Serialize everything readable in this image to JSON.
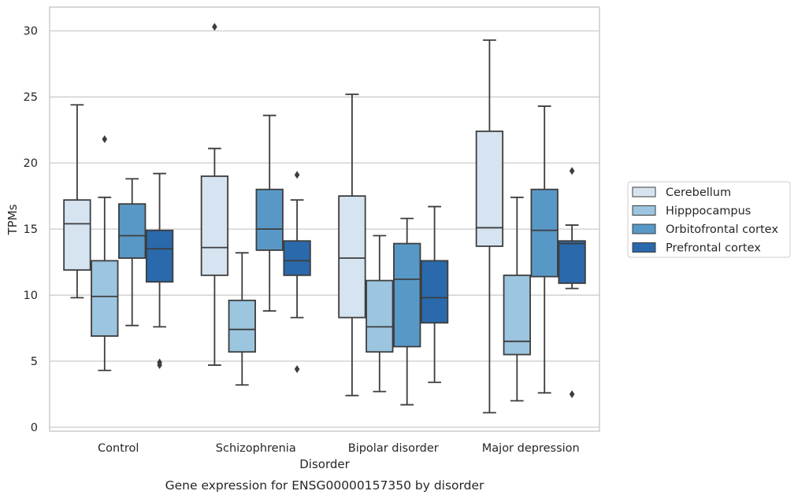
{
  "chart_data": {
    "type": "boxplot",
    "title": "Gene expression for ENSG00000157350 by disorder",
    "xlabel": "Disorder",
    "ylabel": "TPMs",
    "ylim": [
      -0.3,
      31.8
    ],
    "yticks": [
      0,
      5,
      10,
      15,
      20,
      25,
      30
    ],
    "grid": true,
    "legend_position": "right",
    "categories": [
      "Control",
      "Schizophrenia",
      "Bipolar disorder",
      "Major depression"
    ],
    "series": [
      {
        "name": "Cerebellum",
        "color": "#d6e3f1",
        "boxes": [
          {
            "whislo": 9.8,
            "q1": 11.9,
            "med": 15.4,
            "q3": 17.2,
            "whishi": 24.4,
            "fliers": []
          },
          {
            "whislo": 4.7,
            "q1": 11.5,
            "med": 13.6,
            "q3": 19.0,
            "whishi": 21.1,
            "fliers": [
              30.3
            ]
          },
          {
            "whislo": 2.4,
            "q1": 8.3,
            "med": 12.8,
            "q3": 17.5,
            "whishi": 25.2,
            "fliers": []
          },
          {
            "whislo": 1.1,
            "q1": 13.7,
            "med": 15.1,
            "q3": 22.4,
            "whishi": 29.3,
            "fliers": []
          }
        ]
      },
      {
        "name": "Hipppocampus",
        "color": "#9cc5df",
        "boxes": [
          {
            "whislo": 4.3,
            "q1": 6.9,
            "med": 9.9,
            "q3": 12.6,
            "whishi": 17.4,
            "fliers": [
              21.8
            ]
          },
          {
            "whislo": 3.2,
            "q1": 5.7,
            "med": 7.4,
            "q3": 9.6,
            "whishi": 13.2,
            "fliers": []
          },
          {
            "whislo": 2.7,
            "q1": 5.7,
            "med": 7.6,
            "q3": 11.1,
            "whishi": 14.5,
            "fliers": []
          },
          {
            "whislo": 2.0,
            "q1": 5.5,
            "med": 6.5,
            "q3": 11.5,
            "whishi": 17.4,
            "fliers": []
          }
        ]
      },
      {
        "name": "Orbitofrontal cortex",
        "color": "#5898c6",
        "boxes": [
          {
            "whislo": 7.7,
            "q1": 12.8,
            "med": 14.5,
            "q3": 16.9,
            "whishi": 18.8,
            "fliers": []
          },
          {
            "whislo": 8.8,
            "q1": 13.4,
            "med": 15.0,
            "q3": 18.0,
            "whishi": 23.6,
            "fliers": []
          },
          {
            "whislo": 1.7,
            "q1": 6.1,
            "med": 11.2,
            "q3": 13.9,
            "whishi": 15.8,
            "fliers": []
          },
          {
            "whislo": 2.6,
            "q1": 11.4,
            "med": 14.9,
            "q3": 18.0,
            "whishi": 24.3,
            "fliers": []
          }
        ]
      },
      {
        "name": "Prefrontal cortex",
        "color": "#2a69ab",
        "boxes": [
          {
            "whislo": 7.6,
            "q1": 11.0,
            "med": 13.5,
            "q3": 14.9,
            "whishi": 19.2,
            "fliers": [
              4.7,
              4.9
            ]
          },
          {
            "whislo": 8.3,
            "q1": 11.5,
            "med": 12.6,
            "q3": 14.1,
            "whishi": 17.2,
            "fliers": [
              19.1,
              4.4
            ]
          },
          {
            "whislo": 3.4,
            "q1": 7.9,
            "med": 9.8,
            "q3": 12.6,
            "whishi": 16.7,
            "fliers": []
          },
          {
            "whislo": 10.5,
            "q1": 10.9,
            "med": 13.9,
            "q3": 14.1,
            "whishi": 15.3,
            "fliers": [
              19.4,
              2.5
            ]
          }
        ]
      }
    ]
  }
}
